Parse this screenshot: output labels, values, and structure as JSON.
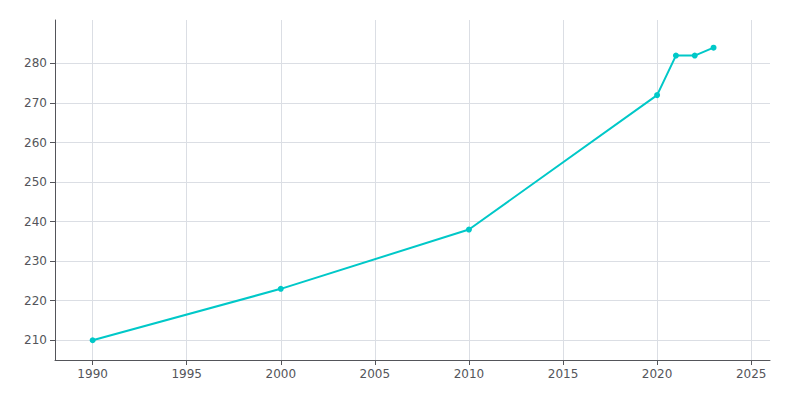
{
  "chart_data": {
    "type": "line",
    "x": [
      1990,
      2000,
      2010,
      2020,
      2021,
      2022,
      2023
    ],
    "values": [
      210,
      223,
      238,
      272,
      282,
      282,
      284
    ],
    "color": "#00C8C8",
    "marker": "circle",
    "xlim": [
      1988,
      2026
    ],
    "ylim": [
      205,
      291
    ],
    "xticks": [
      1990,
      1995,
      2000,
      2005,
      2010,
      2015,
      2020,
      2025
    ],
    "yticks": [
      210,
      220,
      230,
      240,
      250,
      260,
      270,
      280
    ],
    "grid": true
  }
}
